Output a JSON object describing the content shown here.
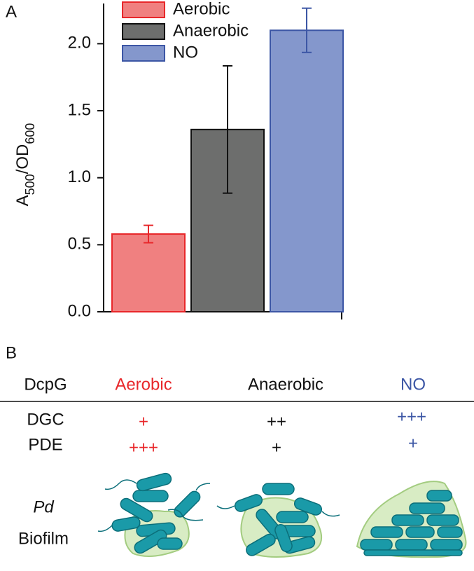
{
  "panel_labels": [
    "A",
    "B"
  ],
  "chart_data": {
    "type": "bar",
    "ylabel": [
      "A",
      "500",
      "/OD",
      "600"
    ],
    "categories": [
      null
    ],
    "series": [
      {
        "name": "Aerobic",
        "color": "#f08080",
        "edgecolor": "#e8272a",
        "values": [
          0.58
        ],
        "errors": [
          0.065
        ]
      },
      {
        "name": "Anaerobic",
        "color": "#6d6e6d",
        "edgecolor": "#111111",
        "values": [
          1.36
        ],
        "errors": [
          0.475
        ]
      },
      {
        "name": "NO",
        "color": "#8497cc",
        "edgecolor": "#3c56a5",
        "values": [
          2.1
        ],
        "errors": [
          0.165
        ]
      }
    ],
    "ylim": [
      0,
      2.3
    ],
    "yticks": [
      {
        "value": 0,
        "label": "0.0"
      },
      {
        "value": 0.5,
        "label": "0.5"
      },
      {
        "value": 1,
        "label": "1.0"
      },
      {
        "value": 1.5,
        "label": "1.5"
      },
      {
        "value": 2,
        "label": "2.0"
      }
    ],
    "legend": "upper left"
  },
  "table": {
    "header": [
      "DcpG",
      "Aerobic",
      "Anaerobic",
      "NO"
    ],
    "rows": [
      [
        "DGC",
        "+",
        "++",
        "+++"
      ],
      [
        "PDE",
        "+++",
        "+",
        "+"
      ]
    ]
  },
  "biofilm_label": [
    "Pd",
    "Biofilm"
  ]
}
